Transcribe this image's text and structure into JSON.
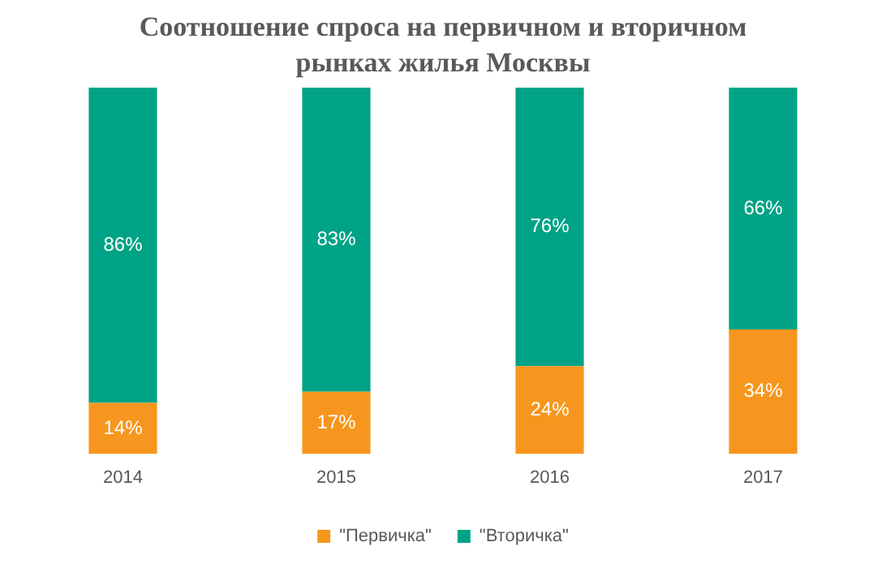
{
  "chart_data": {
    "type": "bar",
    "title": "Соотношение спроса на первичном и вторичном рынках жилья Москвы",
    "categories": [
      "2014",
      "2015",
      "2016",
      "2017"
    ],
    "stacked": true,
    "grid": false,
    "legend": "bottom",
    "series": [
      {
        "name": "\"Первичка\"",
        "color": "#f7961e",
        "values": [
          14,
          17,
          24,
          34
        ],
        "value_labels": [
          "14%",
          "17%",
          "24%",
          "34%"
        ]
      },
      {
        "name": "\"Вторичка\"",
        "color": "#00a385",
        "values": [
          86,
          83,
          76,
          66
        ],
        "value_labels": [
          "86%",
          "83%",
          "76%",
          "66%"
        ]
      }
    ]
  }
}
